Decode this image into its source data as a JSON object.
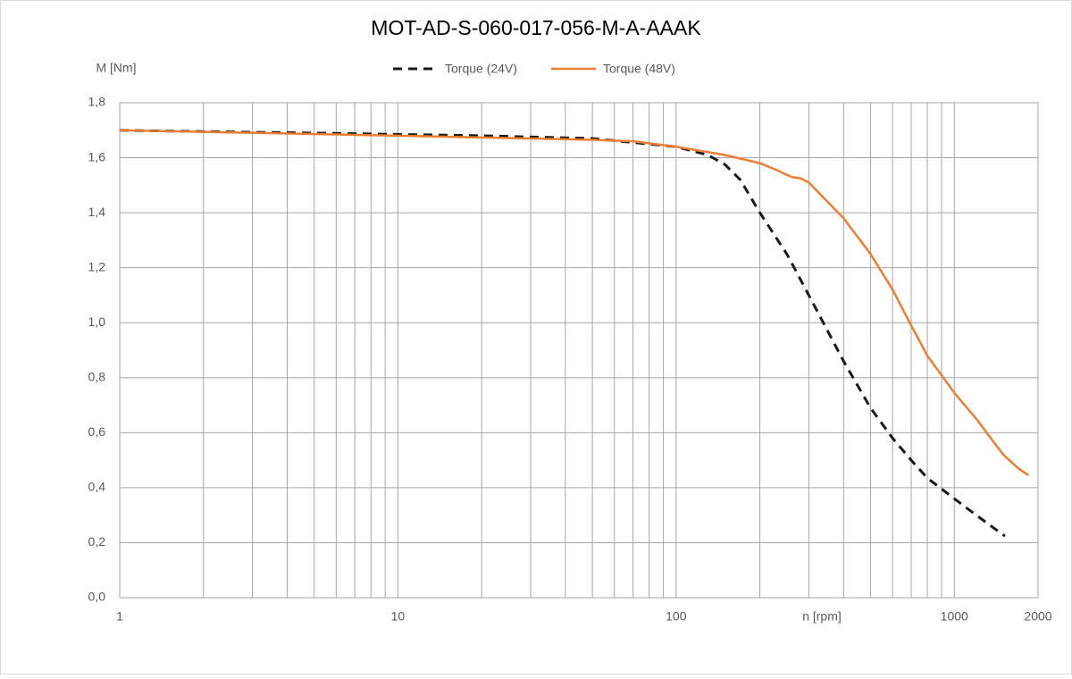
{
  "chart_data": {
    "type": "line",
    "title": "MOT-AD-S-060-017-056-M-A-AAAK",
    "xlabel": "n [rpm]",
    "ylabel": "M [Nm]",
    "xscale": "log",
    "xlim": [
      1,
      2000
    ],
    "xticks": [
      1,
      10,
      100,
      1000,
      2000
    ],
    "xgrid_minor": [
      2,
      3,
      4,
      5,
      6,
      7,
      8,
      9,
      20,
      30,
      40,
      50,
      60,
      70,
      80,
      90,
      200,
      300,
      400,
      500,
      600,
      700,
      800,
      900
    ],
    "ylim": [
      0,
      1.8
    ],
    "yticks": [
      {
        "value": 0,
        "label": "0,0"
      },
      {
        "value": 0.2,
        "label": "0,2"
      },
      {
        "value": 0.4,
        "label": "0,4"
      },
      {
        "value": 0.6,
        "label": "0,6"
      },
      {
        "value": 0.8,
        "label": "0,8"
      },
      {
        "value": 1.0,
        "label": "1,0"
      },
      {
        "value": 1.2,
        "label": "1,2"
      },
      {
        "value": 1.4,
        "label": "1,4"
      },
      {
        "value": 1.6,
        "label": "1,6"
      },
      {
        "value": 1.8,
        "label": "1,8"
      }
    ],
    "grid": true,
    "legend": "top",
    "series": [
      {
        "name": "Torque (24V)",
        "color": "#1a1a1a",
        "dash": true,
        "x": [
          1,
          2,
          5,
          10,
          20,
          50,
          100,
          130,
          150,
          170,
          200,
          250,
          300,
          400,
          500,
          600,
          700,
          800,
          1000,
          1200,
          1520
        ],
        "values": [
          1.7,
          1.695,
          1.69,
          1.685,
          1.68,
          1.67,
          1.64,
          1.61,
          1.575,
          1.52,
          1.4,
          1.25,
          1.1,
          0.86,
          0.69,
          0.58,
          0.5,
          0.435,
          0.36,
          0.3,
          0.224
        ]
      },
      {
        "name": "Torque (48V)",
        "color": "#ed7d31",
        "dash": false,
        "x": [
          1,
          10,
          50,
          70,
          100,
          150,
          200,
          230,
          260,
          280,
          300,
          400,
          500,
          600,
          700,
          800,
          1000,
          1200,
          1500,
          1700,
          1850
        ],
        "values": [
          1.7,
          1.68,
          1.665,
          1.66,
          1.64,
          1.61,
          1.58,
          1.555,
          1.53,
          1.525,
          1.51,
          1.38,
          1.25,
          1.12,
          0.99,
          0.88,
          0.745,
          0.65,
          0.52,
          0.47,
          0.445
        ]
      }
    ]
  }
}
